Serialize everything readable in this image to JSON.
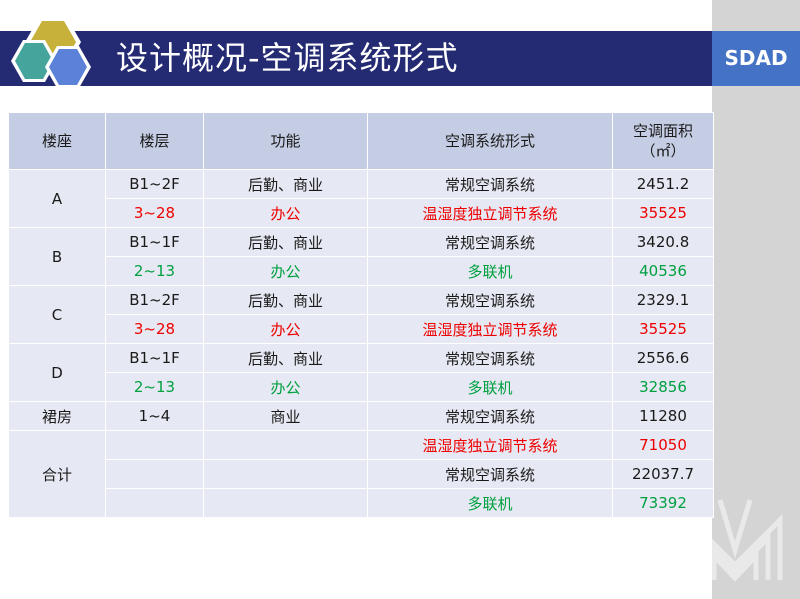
{
  "slide": {
    "title": "设计概况-空调系统形式",
    "brand": "SDAD"
  },
  "colors": {
    "title_bar": "#252b73",
    "brand_bar": "#4472c4",
    "header_row": "#c5cde4",
    "cell": "#e6e9f3",
    "highlight_red": "#ee0000",
    "highlight_green": "#00a040"
  },
  "table": {
    "headers": {
      "building": "楼座",
      "floor": "楼层",
      "function": "功能",
      "ac_system": "空调系统形式",
      "ac_area": "空调面积",
      "ac_area_unit": "（㎡）"
    },
    "groups": [
      {
        "building": "A",
        "rows": [
          {
            "floor": "B1~2F",
            "function": "后勤、商业",
            "system": "常规空调系统",
            "area": "2451.2",
            "color": "default"
          },
          {
            "floor": "3~28",
            "function": "办公",
            "system": "温湿度独立调节系统",
            "area": "35525",
            "color": "red"
          }
        ]
      },
      {
        "building": "B",
        "rows": [
          {
            "floor": "B1~1F",
            "function": "后勤、商业",
            "system": "常规空调系统",
            "area": "3420.8",
            "color": "default"
          },
          {
            "floor": "2~13",
            "function": "办公",
            "system": "多联机",
            "area": "40536",
            "color": "green"
          }
        ]
      },
      {
        "building": "C",
        "rows": [
          {
            "floor": "B1~2F",
            "function": "后勤、商业",
            "system": "常规空调系统",
            "area": "2329.1",
            "color": "default"
          },
          {
            "floor": "3~28",
            "function": "办公",
            "system": "温湿度独立调节系统",
            "area": "35525",
            "color": "red"
          }
        ]
      },
      {
        "building": "D",
        "rows": [
          {
            "floor": "B1~1F",
            "function": "后勤、商业",
            "system": "常规空调系统",
            "area": "2556.6",
            "color": "default"
          },
          {
            "floor": "2~13",
            "function": "办公",
            "system": "多联机",
            "area": "32856",
            "color": "green"
          }
        ]
      },
      {
        "building": "裙房",
        "rows": [
          {
            "floor": "1~4",
            "function": "商业",
            "system": "常规空调系统",
            "area": "11280",
            "color": "default"
          }
        ]
      },
      {
        "building": "合计",
        "rows": [
          {
            "floor": "",
            "function": "",
            "system": "温湿度独立调节系统",
            "area": "71050",
            "color": "red"
          },
          {
            "floor": "",
            "function": "",
            "system": "常规空调系统",
            "area": "22037.7",
            "color": "default"
          },
          {
            "floor": "",
            "function": "",
            "system": "多联机",
            "area": "73392",
            "color": "green"
          }
        ]
      }
    ]
  }
}
